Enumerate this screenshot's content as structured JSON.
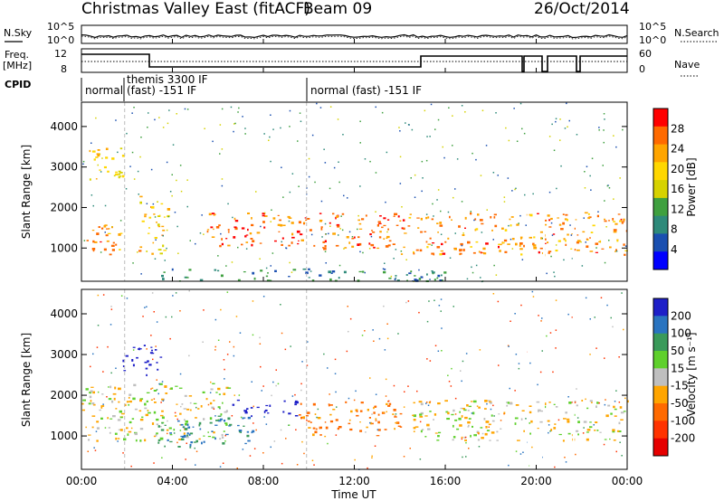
{
  "header": {
    "title": "Christmas Valley East (fitACF)",
    "beam": "Beam 09",
    "date": "26/Oct/2014"
  },
  "strip_panels": {
    "nsky_label": "N.Sky",
    "nsearch_label": "N.Search",
    "noise_ticks": [
      "10^5",
      "10^0"
    ],
    "freq_label_line1": "Freq.",
    "freq_label_line2": "[MHz]",
    "freq_ticks": [
      "12",
      "8"
    ],
    "nave_label": "Nave",
    "nave_ticks": [
      "60",
      "0"
    ],
    "cpid_label": "CPID",
    "cpid_segments": [
      {
        "label_line1": "normal",
        "label_line2": "",
        "start_hour": 0.0
      },
      {
        "label_line1": "themis 3300 IF",
        "label_line2": "(fast) -151 IF",
        "start_hour": 1.9
      },
      {
        "label_line1": "normal (fast) -151 IF",
        "label_line2": "",
        "start_hour": 9.9
      }
    ]
  },
  "power_panel": {
    "ylabel": "Slant Range [km]",
    "yticks": [
      "4000",
      "3000",
      "2000",
      "1000"
    ],
    "colorbar_label": "Power [dB]",
    "colorbar_ticks": [
      "28",
      "24",
      "20",
      "16",
      "12",
      "8",
      "4"
    ],
    "colorbar_colors": [
      "#ff0000",
      "#ff6a00",
      "#ffa500",
      "#ffd700",
      "#d6d200",
      "#3fa03f",
      "#2e8a7a",
      "#1a4fb0",
      "#0000ff"
    ]
  },
  "velocity_panel": {
    "ylabel": "Slant Range [km]",
    "yticks": [
      "4000",
      "3000",
      "2000",
      "1000"
    ],
    "colorbar_label": "Velocity [m s⁻¹]",
    "colorbar_ticks": [
      "200",
      "100",
      "50",
      "15",
      "-15",
      "-50",
      "-100",
      "-200"
    ],
    "colorbar_colors": [
      "#1e20c8",
      "#2a74c0",
      "#3a9a5a",
      "#5fd02c",
      "#bfbfbf",
      "#ffa500",
      "#ff6a00",
      "#ff3300",
      "#e60000"
    ]
  },
  "xaxis": {
    "label": "Time UT",
    "ticks": [
      "00:00",
      "04:00",
      "08:00",
      "12:00",
      "16:00",
      "20:00",
      "00:00"
    ]
  },
  "chart_data": [
    {
      "type": "heatmap",
      "title": "Christmas Valley East (fitACF) Beam 09 26/Oct/2014",
      "panel": "power",
      "xlabel": "Time UT",
      "ylabel": "Slant Range [km]",
      "xlim_hours": [
        0,
        24
      ],
      "ylim_km": [
        180,
        4600
      ],
      "colorbar": {
        "label": "Power [dB]",
        "range": [
          0,
          30
        ],
        "ticks": [
          4,
          8,
          12,
          16,
          20,
          24,
          28
        ]
      },
      "regions": [
        {
          "t0": 0.0,
          "t1": 2.0,
          "r0": 850,
          "r1": 1600,
          "value": 24
        },
        {
          "t0": 0.2,
          "t1": 1.8,
          "r0": 2600,
          "r1": 3500,
          "value": 20
        },
        {
          "t0": 2.5,
          "t1": 3.8,
          "r0": 800,
          "r1": 2300,
          "value": 20
        },
        {
          "t0": 5.5,
          "t1": 14.0,
          "r0": 1000,
          "r1": 1900,
          "value": 26
        },
        {
          "t0": 14.0,
          "t1": 24.0,
          "r0": 850,
          "r1": 1900,
          "value": 24
        },
        {
          "t0": 3.5,
          "t1": 16.0,
          "r0": 200,
          "r1": 500,
          "value": 8
        }
      ]
    },
    {
      "type": "heatmap",
      "panel": "velocity",
      "xlabel": "Time UT",
      "ylabel": "Slant Range [km]",
      "xlim_hours": [
        0,
        24
      ],
      "ylim_km": [
        180,
        4600
      ],
      "colorbar": {
        "label": "Velocity [m s⁻¹]",
        "ticks": [
          200,
          100,
          50,
          15,
          -15,
          -50,
          -100,
          -200
        ]
      },
      "regions": [
        {
          "t0": 0.0,
          "t1": 6.5,
          "r0": 900,
          "r1": 2300,
          "value": 0
        },
        {
          "t0": 1.8,
          "t1": 3.5,
          "r0": 2500,
          "r1": 3300,
          "value": 180
        },
        {
          "t0": 3.0,
          "t1": 5.0,
          "r0": 700,
          "r1": 1300,
          "value": 60
        },
        {
          "t0": 4.2,
          "t1": 7.5,
          "r0": 800,
          "r1": 1500,
          "value": 90
        },
        {
          "t0": 6.5,
          "t1": 9.5,
          "r0": 1500,
          "r1": 1900,
          "value": 200
        },
        {
          "t0": 9.5,
          "t1": 14.0,
          "r0": 1000,
          "r1": 1900,
          "value": -40
        },
        {
          "t0": 14.5,
          "t1": 24.0,
          "r0": 900,
          "r1": 1900,
          "value": 0
        }
      ]
    }
  ]
}
